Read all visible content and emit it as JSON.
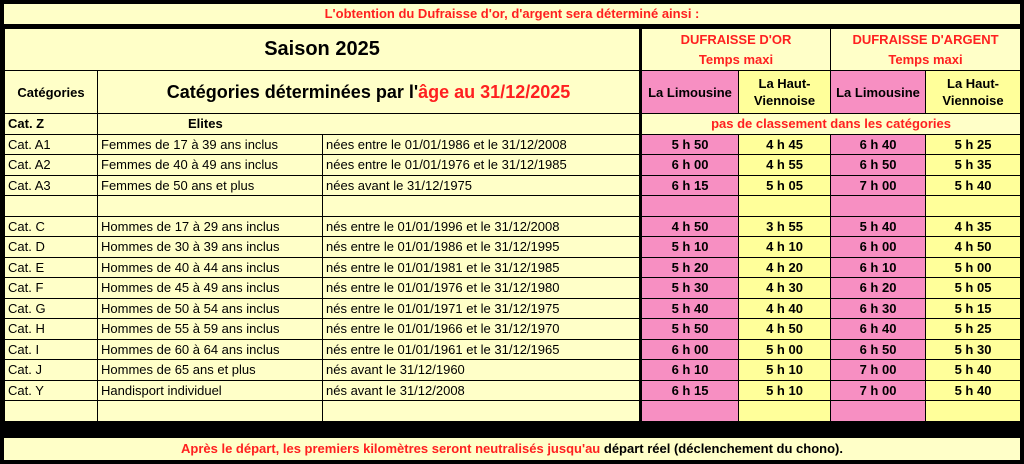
{
  "top_banner": "L'obtention du Dufraisse d'or, d'argent sera déterminé ainsi :",
  "season_title": "Saison 2025",
  "categories_header": "Catégories",
  "subtitle_prefix": "Catégories déterminées par l'",
  "subtitle_highlight": "âge au 31/12/2025",
  "or": {
    "title": "DUFRAISSE D'OR",
    "sub": "Temps maxi"
  },
  "argent": {
    "title": "DUFRAISSE D'ARGENT",
    "sub": "Temps maxi"
  },
  "courses": [
    "La Limousine",
    "La Haut-Viennoise",
    "La Limousine",
    "La Haut-Viennoise"
  ],
  "elite": {
    "cat": "Cat. Z",
    "label": "Elites",
    "note": "pas de classement dans les catégories"
  },
  "rows": [
    {
      "cat": "Cat. A1",
      "desc": "Femmes de 17 à 39 ans inclus",
      "dates": "nées entre le 01/01/1986 et le 31/12/2008",
      "times": [
        "5 h 50",
        "4 h 45",
        "6 h 40",
        "5 h 25"
      ]
    },
    {
      "cat": "Cat. A2",
      "desc": "Femmes de 40 à 49 ans inclus",
      "dates": "nées entre le 01/01/1976 et le 31/12/1985",
      "times": [
        "6 h 00",
        "4 h 55",
        "6 h 50",
        "5 h 35"
      ]
    },
    {
      "cat": "Cat. A3",
      "desc": "Femmes de 50 ans et plus",
      "dates": "nées avant le 31/12/1975",
      "times": [
        "6 h 15",
        "5 h 05",
        "7 h 00",
        "5 h 40"
      ]
    },
    {
      "cat": "",
      "desc": "",
      "dates": "",
      "times": [
        "",
        "",
        "",
        ""
      ]
    },
    {
      "cat": "Cat. C",
      "desc": "Hommes de 17 à 29 ans inclus",
      "dates": "nés entre le 01/01/1996 et le 31/12/2008",
      "times": [
        "4 h 50",
        "3 h 55",
        "5 h 40",
        "4 h 35"
      ]
    },
    {
      "cat": "Cat. D",
      "desc": "Hommes de 30 à 39 ans inclus",
      "dates": "nés entre le 01/01/1986 et le 31/12/1995",
      "times": [
        "5 h 10",
        "4 h 10",
        "6 h 00",
        "4 h 50"
      ]
    },
    {
      "cat": "Cat. E",
      "desc": "Hommes de 40 à 44 ans inclus",
      "dates": "nés entre le 01/01/1981 et le 31/12/1985",
      "times": [
        "5 h 20",
        "4 h 20",
        "6 h 10",
        "5 h 00"
      ]
    },
    {
      "cat": "Cat. F",
      "desc": "Hommes de 45 à 49 ans inclus",
      "dates": "nés entre le 01/01/1976 et le 31/12/1980",
      "times": [
        "5 h 30",
        "4 h 30",
        "6 h 20",
        "5 h 05"
      ]
    },
    {
      "cat": "Cat. G",
      "desc": "Hommes de 50 à 54 ans inclus",
      "dates": "nés entre le 01/01/1971 et le 31/12/1975",
      "times": [
        "5 h 40",
        "4 h 40",
        "6 h 30",
        "5 h 15"
      ]
    },
    {
      "cat": "Cat. H",
      "desc": "Hommes de 55 à 59 ans inclus",
      "dates": "nés entre le 01/01/1966 et le 31/12/1970",
      "times": [
        "5 h 50",
        "4 h 50",
        "6 h 40",
        "5 h 25"
      ]
    },
    {
      "cat": "Cat. I",
      "desc": "Hommes de 60 à 64 ans inclus",
      "dates": "nés entre le 01/01/1961 et le 31/12/1965",
      "times": [
        "6 h 00",
        "5 h 00",
        "6 h 50",
        "5 h 30"
      ]
    },
    {
      "cat": "Cat. J",
      "desc": "Hommes de 65 ans et plus",
      "dates": "nés avant le 31/12/1960",
      "times": [
        "6 h 10",
        "5 h 10",
        "7 h 00",
        "5 h 40"
      ]
    },
    {
      "cat": "Cat. Y",
      "desc": "Handisport individuel",
      "dates": "nés avant le 31/12/2008",
      "times": [
        "6 h 15",
        "5 h 10",
        "7 h 00",
        "5 h 40"
      ]
    },
    {
      "cat": "",
      "desc": "",
      "dates": "",
      "times": [
        "",
        "",
        "",
        ""
      ]
    }
  ],
  "bottom_banner": {
    "red": "Après le départ, les premiers kilomètres seront neutralisés jusqu'au ",
    "black": "départ réel (déclenchement du chono)."
  },
  "colors": {
    "background": "#ffffc8",
    "pink": "#f78fc2",
    "yellow": "#ffff9a",
    "red": "#ff2020"
  }
}
